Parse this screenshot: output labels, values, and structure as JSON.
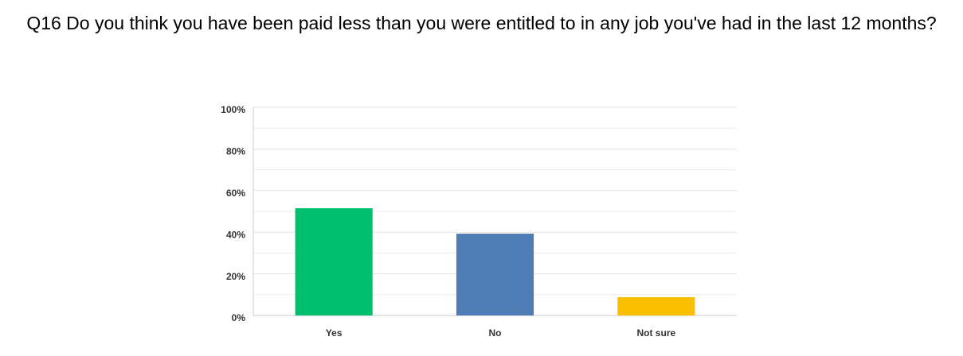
{
  "chart_data": {
    "type": "bar",
    "title": "Q16 Do you think you have been paid less than you were entitled to in any job you've had in the last 12 months?",
    "categories": [
      "Yes",
      "No",
      "Not sure"
    ],
    "values": [
      51.5,
      39.3,
      8.8
    ],
    "colors": [
      "#00bf6f",
      "#507cb6",
      "#f9be00"
    ],
    "ylim": [
      0,
      100
    ],
    "yticks": [
      {
        "value": 0,
        "label": "0%"
      },
      {
        "value": 20,
        "label": "20%"
      },
      {
        "value": 40,
        "label": "40%"
      },
      {
        "value": 60,
        "label": "60%"
      },
      {
        "value": 80,
        "label": "80%"
      },
      {
        "value": 100,
        "label": "100%"
      }
    ],
    "minor_yticks": [
      10,
      30,
      50,
      70,
      90
    ],
    "grid": true
  }
}
